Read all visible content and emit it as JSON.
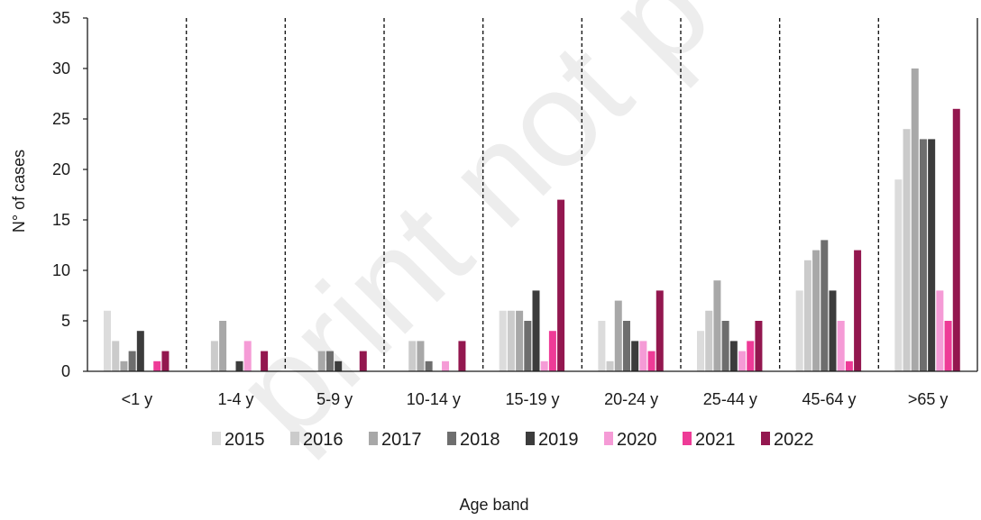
{
  "chart_data": {
    "type": "bar",
    "title": "",
    "xlabel": "Age band",
    "ylabel": "N° of cases",
    "ylim": [
      0,
      35
    ],
    "yticks": [
      0,
      5,
      10,
      15,
      20,
      25,
      30,
      35
    ],
    "grid": false,
    "group_separators": "dashed",
    "legend_position": "bottom",
    "categories": [
      "<1 y",
      "1-4 y",
      "5-9 y",
      "10-14 y",
      "15-19 y",
      "20-24 y",
      "25-44 y",
      "45-64 y",
      ">65 y"
    ],
    "series": [
      {
        "name": "2015",
        "color": "#dcdcdc",
        "values": [
          6,
          0,
          0,
          0,
          6,
          5,
          4,
          8,
          19
        ]
      },
      {
        "name": "2016",
        "color": "#cbcbcb",
        "values": [
          3,
          3,
          0,
          3,
          6,
          1,
          6,
          11,
          24
        ]
      },
      {
        "name": "2017",
        "color": "#a8a8a8",
        "values": [
          1,
          5,
          2,
          3,
          6,
          7,
          9,
          12,
          30
        ]
      },
      {
        "name": "2018",
        "color": "#6e6e6e",
        "values": [
          2,
          0,
          2,
          1,
          5,
          5,
          5,
          13,
          23
        ]
      },
      {
        "name": "2019",
        "color": "#3c3c3c",
        "values": [
          4,
          1,
          1,
          0,
          8,
          3,
          3,
          8,
          23
        ]
      },
      {
        "name": "2020",
        "color": "#f59bd6",
        "values": [
          0,
          3,
          0,
          1,
          1,
          3,
          2,
          5,
          8
        ]
      },
      {
        "name": "2021",
        "color": "#ee3b97",
        "values": [
          1,
          0,
          0,
          0,
          4,
          2,
          3,
          1,
          5
        ]
      },
      {
        "name": "2022",
        "color": "#93174f",
        "values": [
          2,
          2,
          2,
          3,
          17,
          8,
          5,
          12,
          26
        ]
      }
    ]
  }
}
